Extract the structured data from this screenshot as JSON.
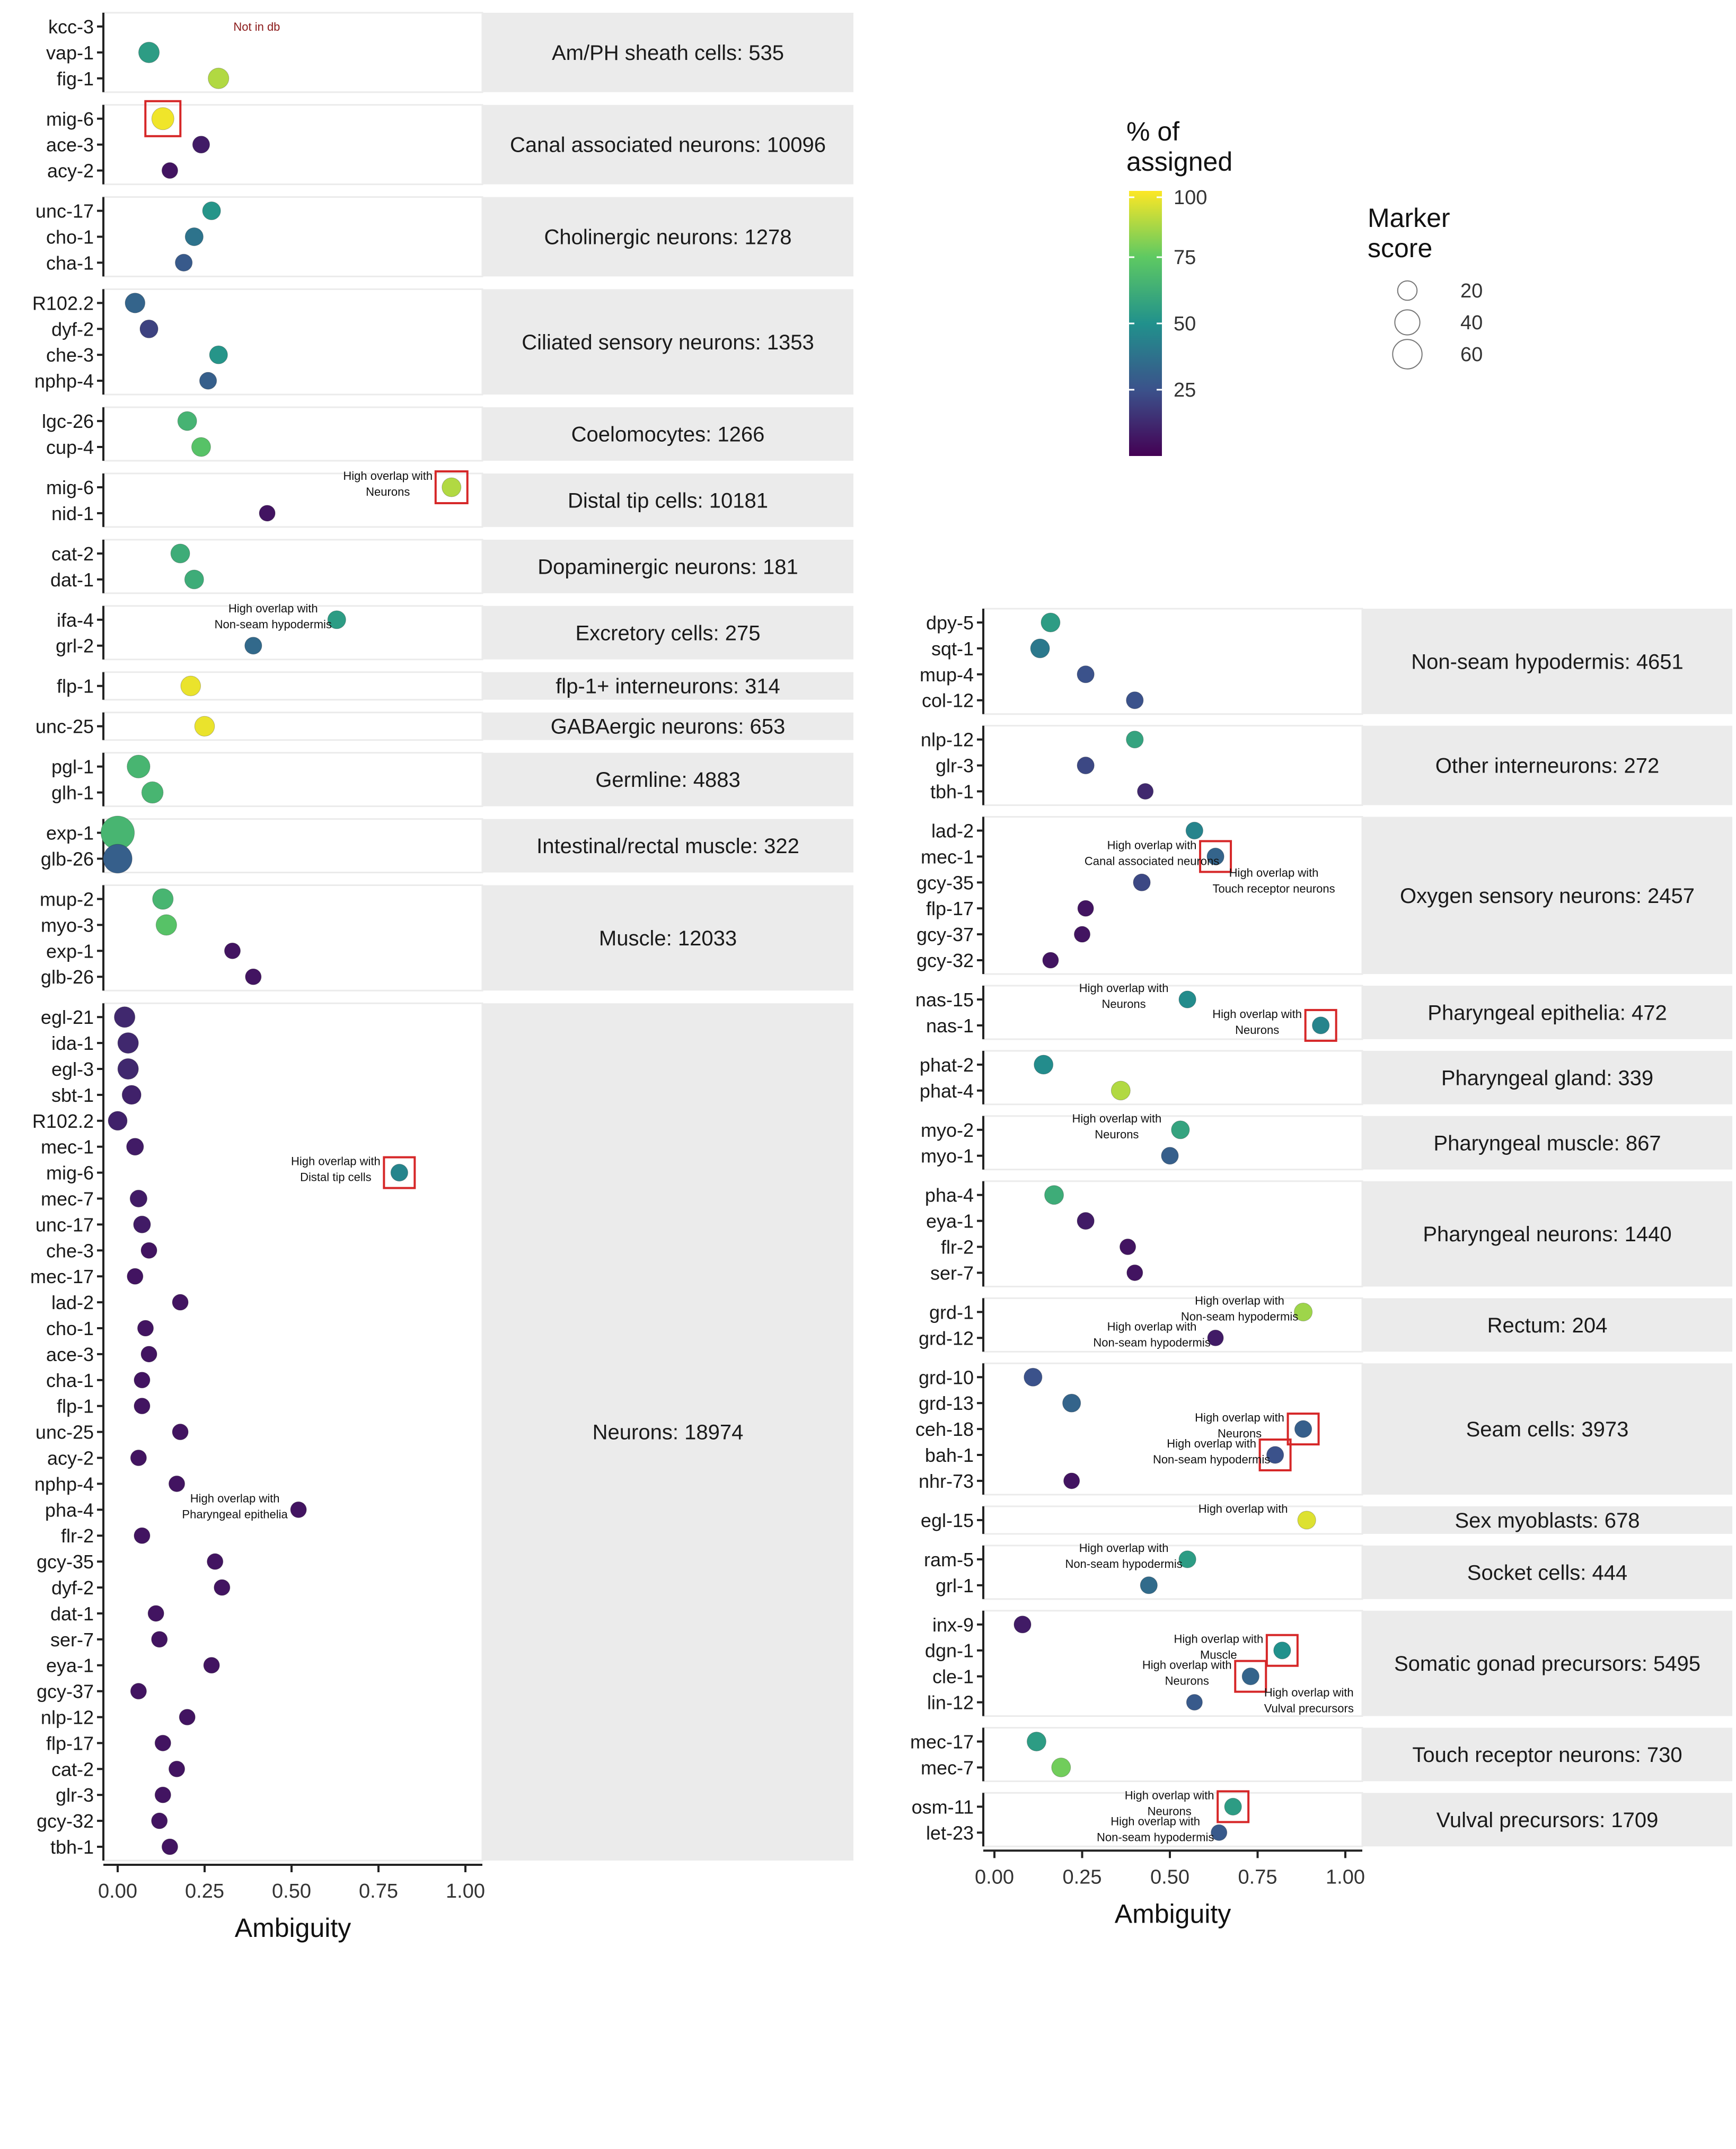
{
  "chart_data": {
    "type": "scatter",
    "xlabel": "Ambiguity",
    "xlim": [
      0,
      1
    ],
    "xticks": [
      0,
      0.25,
      0.5,
      0.75,
      1.0
    ],
    "xtick_labels": [
      "0.00",
      "0.25",
      "0.50",
      "0.75",
      "1.00"
    ],
    "legend_color": {
      "title_line1": "% of",
      "title_line2": "assigned",
      "ticks": [
        100,
        75,
        50,
        25
      ]
    },
    "legend_size": {
      "title_line1": "Marker",
      "title_line2": "score",
      "values": [
        20,
        40,
        60
      ]
    },
    "left_panels": [
      {
        "label": "Am/PH sheath cells: 535",
        "genes": [
          {
            "gene": "kcc-3",
            "x": null,
            "pct": null,
            "score": null,
            "note": "Not in db"
          },
          {
            "gene": "vap-1",
            "x": 0.09,
            "pct": 55,
            "score": 18
          },
          {
            "gene": "fig-1",
            "x": 0.29,
            "pct": 88,
            "score": 18
          }
        ]
      },
      {
        "label": "Canal associated neurons: 10096",
        "genes": [
          {
            "gene": "mig-6",
            "x": 0.13,
            "pct": 98,
            "score": 22,
            "box": true
          },
          {
            "gene": "ace-3",
            "x": 0.24,
            "pct": 8,
            "score": 10
          },
          {
            "gene": "acy-2",
            "x": 0.15,
            "pct": 6,
            "score": 8
          }
        ]
      },
      {
        "label": "Cholinergic neurons: 1278",
        "genes": [
          {
            "gene": "unc-17",
            "x": 0.27,
            "pct": 52,
            "score": 12
          },
          {
            "gene": "cho-1",
            "x": 0.22,
            "pct": 38,
            "score": 12
          },
          {
            "gene": "cha-1",
            "x": 0.19,
            "pct": 28,
            "score": 10
          }
        ]
      },
      {
        "label": "Ciliated sensory neurons: 1353",
        "genes": [
          {
            "gene": "R102.2",
            "x": 0.05,
            "pct": 32,
            "score": 16
          },
          {
            "gene": "dyf-2",
            "x": 0.09,
            "pct": 20,
            "score": 12
          },
          {
            "gene": "che-3",
            "x": 0.29,
            "pct": 52,
            "score": 12
          },
          {
            "gene": "nphp-4",
            "x": 0.26,
            "pct": 30,
            "score": 10
          }
        ]
      },
      {
        "label": "Coelomocytes: 1266",
        "genes": [
          {
            "gene": "lgc-26",
            "x": 0.2,
            "pct": 65,
            "score": 14
          },
          {
            "gene": "cup-4",
            "x": 0.24,
            "pct": 72,
            "score": 14
          }
        ]
      },
      {
        "label": "Distal tip cells: 10181",
        "genes": [
          {
            "gene": "mig-6",
            "x": 0.96,
            "pct": 88,
            "score": 14,
            "box": true,
            "note": "High overlap with\nNeurons"
          },
          {
            "gene": "nid-1",
            "x": 0.43,
            "pct": 6,
            "score": 8
          }
        ]
      },
      {
        "label": "Dopaminergic neurons: 181",
        "genes": [
          {
            "gene": "cat-2",
            "x": 0.18,
            "pct": 62,
            "score": 14
          },
          {
            "gene": "dat-1",
            "x": 0.22,
            "pct": 62,
            "score": 14
          }
        ]
      },
      {
        "label": "Excretory cells: 275",
        "genes": [
          {
            "gene": "ifa-4",
            "x": 0.63,
            "pct": 55,
            "score": 12,
            "note": "High overlap with\nNon-seam hypodermis"
          },
          {
            "gene": "grl-2",
            "x": 0.39,
            "pct": 34,
            "score": 10
          }
        ]
      },
      {
        "label": "flp-1+ interneurons: 314",
        "genes": [
          {
            "gene": "flp-1",
            "x": 0.21,
            "pct": 97,
            "score": 16
          }
        ]
      },
      {
        "label": "GABAergic neurons: 653",
        "genes": [
          {
            "gene": "unc-25",
            "x": 0.25,
            "pct": 97,
            "score": 16
          }
        ]
      },
      {
        "label": "Germline: 4883",
        "genes": [
          {
            "gene": "pgl-1",
            "x": 0.06,
            "pct": 66,
            "score": 24
          },
          {
            "gene": "glh-1",
            "x": 0.1,
            "pct": 66,
            "score": 20
          }
        ]
      },
      {
        "label": "Intestinal/rectal muscle: 322",
        "genes": [
          {
            "gene": "exp-1",
            "x": 0.0,
            "pct": 66,
            "score": 64
          },
          {
            "gene": "glb-26",
            "x": 0.0,
            "pct": 30,
            "score": 44
          }
        ]
      },
      {
        "label": "Muscle: 12033",
        "genes": [
          {
            "gene": "mup-2",
            "x": 0.13,
            "pct": 66,
            "score": 18
          },
          {
            "gene": "myo-3",
            "x": 0.14,
            "pct": 72,
            "score": 18
          },
          {
            "gene": "exp-1",
            "x": 0.33,
            "pct": 6,
            "score": 8
          },
          {
            "gene": "glb-26",
            "x": 0.39,
            "pct": 6,
            "score": 8
          }
        ]
      },
      {
        "label": "Neurons: 18974",
        "genes": [
          {
            "gene": "egl-21",
            "x": 0.02,
            "pct": 12,
            "score": 18
          },
          {
            "gene": "ida-1",
            "x": 0.03,
            "pct": 12,
            "score": 18
          },
          {
            "gene": "egl-3",
            "x": 0.03,
            "pct": 12,
            "score": 18
          },
          {
            "gene": "sbt-1",
            "x": 0.04,
            "pct": 10,
            "score": 14
          },
          {
            "gene": "R102.2",
            "x": 0.0,
            "pct": 10,
            "score": 14
          },
          {
            "gene": "mec-1",
            "x": 0.05,
            "pct": 8,
            "score": 10
          },
          {
            "gene": "mig-6",
            "x": 0.81,
            "pct": 45,
            "score": 10,
            "box": true,
            "note": "High overlap with\nDistal tip cells"
          },
          {
            "gene": "mec-7",
            "x": 0.06,
            "pct": 8,
            "score": 10
          },
          {
            "gene": "unc-17",
            "x": 0.07,
            "pct": 8,
            "score": 10
          },
          {
            "gene": "che-3",
            "x": 0.09,
            "pct": 6,
            "score": 8
          },
          {
            "gene": "mec-17",
            "x": 0.05,
            "pct": 6,
            "score": 8
          },
          {
            "gene": "lad-2",
            "x": 0.18,
            "pct": 6,
            "score": 8
          },
          {
            "gene": "cho-1",
            "x": 0.08,
            "pct": 6,
            "score": 8
          },
          {
            "gene": "ace-3",
            "x": 0.09,
            "pct": 6,
            "score": 8
          },
          {
            "gene": "cha-1",
            "x": 0.07,
            "pct": 6,
            "score": 8
          },
          {
            "gene": "flp-1",
            "x": 0.07,
            "pct": 6,
            "score": 8
          },
          {
            "gene": "unc-25",
            "x": 0.18,
            "pct": 6,
            "score": 8
          },
          {
            "gene": "acy-2",
            "x": 0.06,
            "pct": 6,
            "score": 8
          },
          {
            "gene": "nphp-4",
            "x": 0.17,
            "pct": 6,
            "score": 8
          },
          {
            "gene": "pha-4",
            "x": 0.52,
            "pct": 6,
            "score": 8,
            "note": "High overlap with\nPharyngeal epithelia"
          },
          {
            "gene": "flr-2",
            "x": 0.07,
            "pct": 6,
            "score": 8
          },
          {
            "gene": "gcy-35",
            "x": 0.28,
            "pct": 6,
            "score": 8
          },
          {
            "gene": "dyf-2",
            "x": 0.3,
            "pct": 6,
            "score": 8
          },
          {
            "gene": "dat-1",
            "x": 0.11,
            "pct": 6,
            "score": 8
          },
          {
            "gene": "ser-7",
            "x": 0.12,
            "pct": 6,
            "score": 8
          },
          {
            "gene": "eya-1",
            "x": 0.27,
            "pct": 6,
            "score": 8
          },
          {
            "gene": "gcy-37",
            "x": 0.06,
            "pct": 6,
            "score": 8
          },
          {
            "gene": "nlp-12",
            "x": 0.2,
            "pct": 6,
            "score": 8
          },
          {
            "gene": "flp-17",
            "x": 0.13,
            "pct": 6,
            "score": 8
          },
          {
            "gene": "cat-2",
            "x": 0.17,
            "pct": 6,
            "score": 8
          },
          {
            "gene": "glr-3",
            "x": 0.13,
            "pct": 6,
            "score": 8
          },
          {
            "gene": "gcy-32",
            "x": 0.12,
            "pct": 6,
            "score": 8
          },
          {
            "gene": "tbh-1",
            "x": 0.15,
            "pct": 6,
            "score": 8
          }
        ]
      }
    ],
    "right_panels": [
      {
        "label": "Non-seam hypodermis: 4651",
        "genes": [
          {
            "gene": "dpy-5",
            "x": 0.16,
            "pct": 55,
            "score": 14
          },
          {
            "gene": "sqt-1",
            "x": 0.13,
            "pct": 40,
            "score": 14
          },
          {
            "gene": "mup-4",
            "x": 0.26,
            "pct": 25,
            "score": 10
          },
          {
            "gene": "col-12",
            "x": 0.4,
            "pct": 25,
            "score": 10
          }
        ]
      },
      {
        "label": "Other interneurons: 272",
        "genes": [
          {
            "gene": "nlp-12",
            "x": 0.4,
            "pct": 58,
            "score": 10
          },
          {
            "gene": "glr-3",
            "x": 0.26,
            "pct": 22,
            "score": 10
          },
          {
            "gene": "tbh-1",
            "x": 0.43,
            "pct": 12,
            "score": 8
          }
        ]
      },
      {
        "label": "Oxygen sensory neurons: 2457",
        "genes": [
          {
            "gene": "lad-2",
            "x": 0.57,
            "pct": 45,
            "score": 10
          },
          {
            "gene": "mec-1",
            "x": 0.63,
            "pct": 32,
            "score": 10,
            "box": true,
            "note": "High overlap with\nCanal associated neurons",
            "note2": "High overlap with\nTouch receptor neurons"
          },
          {
            "gene": "gcy-35",
            "x": 0.42,
            "pct": 22,
            "score": 10
          },
          {
            "gene": "flp-17",
            "x": 0.26,
            "pct": 6,
            "score": 8
          },
          {
            "gene": "gcy-37",
            "x": 0.25,
            "pct": 6,
            "score": 8
          },
          {
            "gene": "gcy-32",
            "x": 0.16,
            "pct": 6,
            "score": 8
          }
        ]
      },
      {
        "label": "Pharyngeal epithelia: 472",
        "genes": [
          {
            "gene": "nas-15",
            "x": 0.55,
            "pct": 48,
            "score": 10,
            "note": "High overlap with\nNeurons"
          },
          {
            "gene": "nas-1",
            "x": 0.93,
            "pct": 45,
            "score": 10,
            "box": true,
            "note": "High overlap with\nNeurons"
          }
        ]
      },
      {
        "label": "Pharyngeal gland: 339",
        "genes": [
          {
            "gene": "phat-2",
            "x": 0.14,
            "pct": 48,
            "score": 14
          },
          {
            "gene": "phat-4",
            "x": 0.36,
            "pct": 88,
            "score": 14
          }
        ]
      },
      {
        "label": "Pharyngeal muscle: 867",
        "genes": [
          {
            "gene": "myo-2",
            "x": 0.53,
            "pct": 58,
            "score": 12,
            "note": "High overlap with\nNeurons"
          },
          {
            "gene": "myo-1",
            "x": 0.5,
            "pct": 30,
            "score": 10
          }
        ]
      },
      {
        "label": "Pharyngeal neurons: 1440",
        "genes": [
          {
            "gene": "pha-4",
            "x": 0.17,
            "pct": 62,
            "score": 14
          },
          {
            "gene": "eya-1",
            "x": 0.26,
            "pct": 8,
            "score": 10
          },
          {
            "gene": "flr-2",
            "x": 0.38,
            "pct": 6,
            "score": 8
          },
          {
            "gene": "ser-7",
            "x": 0.4,
            "pct": 6,
            "score": 8
          }
        ]
      },
      {
        "label": "Rectum: 204",
        "genes": [
          {
            "gene": "grd-1",
            "x": 0.88,
            "pct": 85,
            "score": 12,
            "note": "High overlap with\nNon-seam hypodermis"
          },
          {
            "gene": "grd-12",
            "x": 0.63,
            "pct": 8,
            "score": 8,
            "note": "High overlap with\nNon-seam hypodermis"
          }
        ]
      },
      {
        "label": "Seam cells: 3973",
        "genes": [
          {
            "gene": "grd-10",
            "x": 0.11,
            "pct": 25,
            "score": 12
          },
          {
            "gene": "grd-13",
            "x": 0.22,
            "pct": 32,
            "score": 12
          },
          {
            "gene": "ceh-18",
            "x": 0.88,
            "pct": 30,
            "score": 10,
            "box": true,
            "note": "High overlap with\nNeurons"
          },
          {
            "gene": "bah-1",
            "x": 0.8,
            "pct": 25,
            "score": 10,
            "box": true,
            "note": "High overlap with\nNon-seam hypodermis"
          },
          {
            "gene": "nhr-73",
            "x": 0.22,
            "pct": 6,
            "score": 8
          }
        ]
      },
      {
        "label": "Sex myoblasts: 678",
        "genes": [
          {
            "gene": "egl-15",
            "x": 0.89,
            "pct": 95,
            "score": 12,
            "note": "High overlap with"
          }
        ]
      },
      {
        "label": "Socket cells: 444",
        "genes": [
          {
            "gene": "ram-5",
            "x": 0.55,
            "pct": 55,
            "score": 10,
            "note": "High overlap with\nNon-seam hypodermis"
          },
          {
            "gene": "grl-1",
            "x": 0.44,
            "pct": 35,
            "score": 10
          }
        ]
      },
      {
        "label": "Somatic gonad precursors: 5495",
        "genes": [
          {
            "gene": "inx-9",
            "x": 0.08,
            "pct": 8,
            "score": 10
          },
          {
            "gene": "dgn-1",
            "x": 0.82,
            "pct": 50,
            "score": 10,
            "box": true,
            "note": "High overlap with\nMuscle"
          },
          {
            "gene": "cle-1",
            "x": 0.73,
            "pct": 32,
            "score": 10,
            "box": true,
            "note": "High overlap with\nNeurons",
            "note2": "High overlap with\nVulval precursors"
          },
          {
            "gene": "lin-12",
            "x": 0.57,
            "pct": 28,
            "score": 8
          }
        ]
      },
      {
        "label": "Touch receptor neurons: 730",
        "genes": [
          {
            "gene": "mec-17",
            "x": 0.12,
            "pct": 55,
            "score": 14
          },
          {
            "gene": "mec-7",
            "x": 0.19,
            "pct": 78,
            "score": 14
          }
        ]
      },
      {
        "label": "Vulval precursors: 1709",
        "genes": [
          {
            "gene": "osm-11",
            "x": 0.68,
            "pct": 55,
            "score": 10,
            "box": true,
            "note": "High overlap with\nNeurons"
          },
          {
            "gene": "let-23",
            "x": 0.64,
            "pct": 28,
            "score": 8,
            "note": "High overlap with\nNon-seam hypodermis"
          }
        ]
      }
    ]
  }
}
